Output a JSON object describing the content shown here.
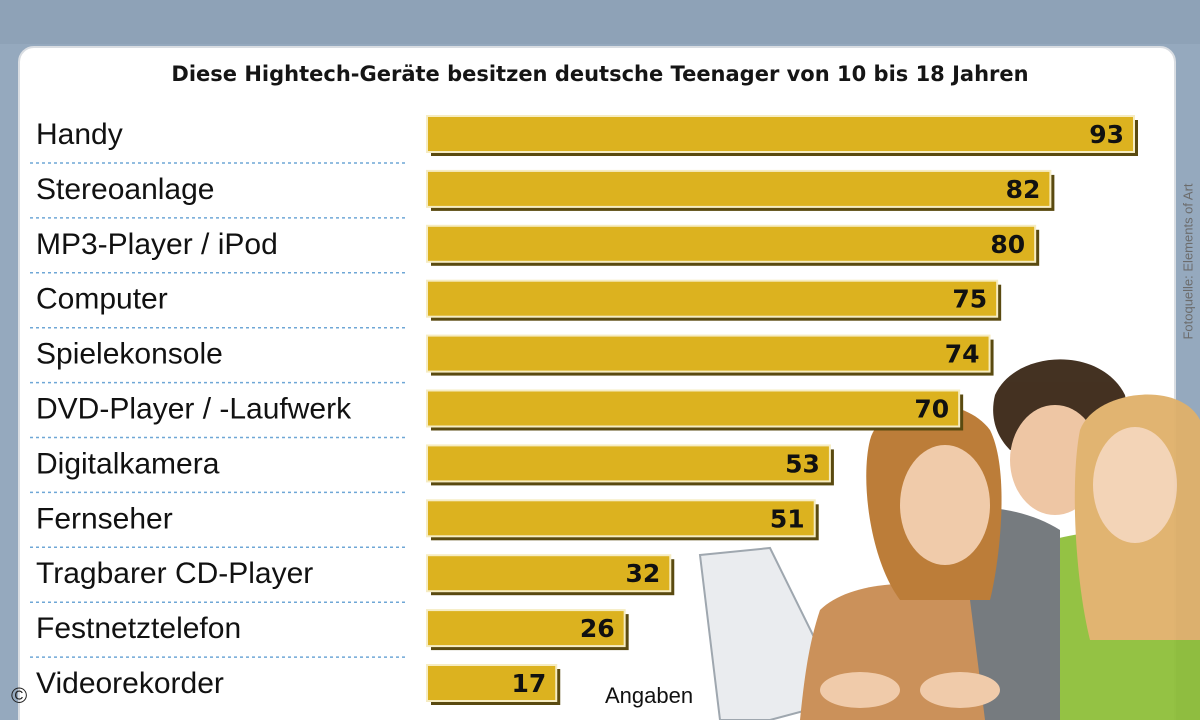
{
  "subtitle": "Diese Hightech-Geräte besitzen deutsche Teenager von 10 bis 18 Jahren",
  "credit": "Fotoquelle: Elements of Art",
  "copyright": "©",
  "unit_label": "Angaben",
  "colors": {
    "bar": "#dcb21f",
    "bar_shadow": "#5a4a10",
    "bar_border": "#f6ecc2",
    "panel": "#ffffff",
    "background": "#95a9be",
    "divider": "#6fa7d6"
  },
  "chart_data": {
    "type": "bar",
    "orientation": "horizontal",
    "title": "",
    "subtitle": "Diese Hightech-Geräte besitzen deutsche Teenager von 10 bis 18 Jahren",
    "categories": [
      "Handy",
      "Stereoanlage",
      "MP3-Player / iPod",
      "Computer",
      "Spielekonsole",
      "DVD-Player / -Laufwerk",
      "Digitalkamera",
      "Fernseher",
      "Tragbarer CD-Player",
      "Festnetztelefon",
      "Videorekorder"
    ],
    "values": [
      93,
      82,
      80,
      75,
      74,
      70,
      53,
      51,
      32,
      26,
      17
    ],
    "xlim": [
      0,
      93
    ],
    "data_labels": true,
    "grid": false,
    "legend": "none"
  }
}
